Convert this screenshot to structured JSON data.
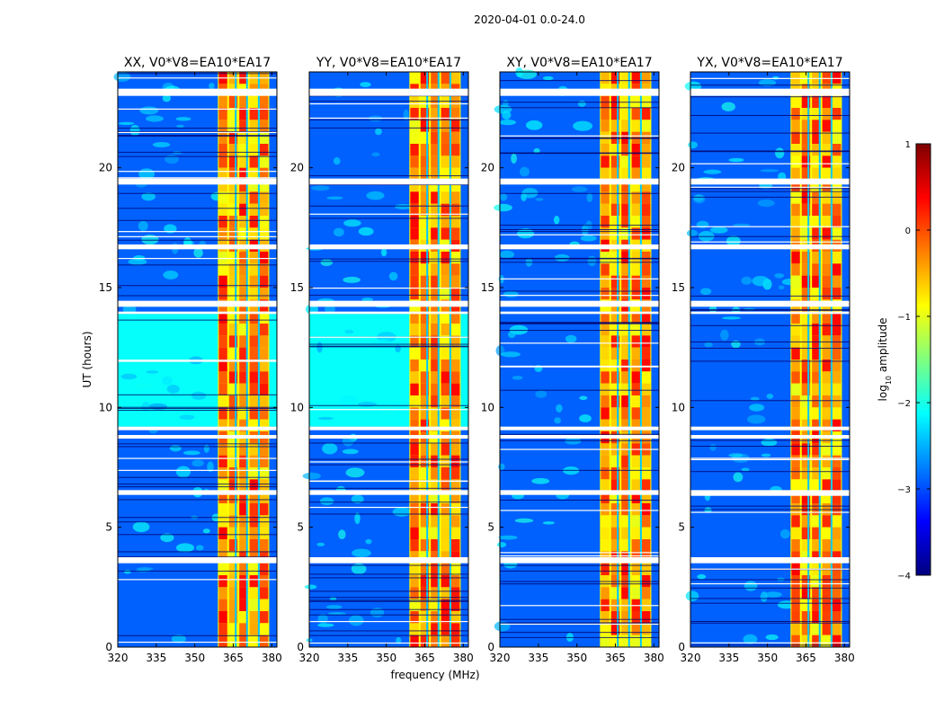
{
  "suptitle": "2020-04-01 0.0-24.0",
  "colorscale": [
    "#00007f",
    "#0000ff",
    "#007fff",
    "#00ffff",
    "#7fff7f",
    "#ffff00",
    "#ff7f00",
    "#ff0000",
    "#7f0000"
  ],
  "chart_data": [
    {
      "type": "heatmap",
      "title": "XX, V0*V8=EA10*EA17",
      "xlabel": "",
      "ylabel": "UT (hours)",
      "xlim": [
        320,
        382
      ],
      "ylim": [
        0,
        24
      ],
      "xticks": [
        320,
        335,
        350,
        365,
        380
      ],
      "yticks": [
        0,
        5,
        10,
        15,
        20
      ],
      "z": "log10 amplitude (approx.)",
      "strong_band_MHz": [
        359,
        379
      ],
      "gap_bands_UT": [
        [
          23.0,
          23.3
        ],
        [
          19.3,
          19.55
        ],
        [
          16.6,
          16.8
        ],
        [
          14.2,
          14.45
        ],
        [
          13.9,
          14.0
        ],
        [
          9.05,
          9.2
        ],
        [
          8.7,
          8.85
        ],
        [
          6.35,
          6.55
        ],
        [
          3.5,
          3.75
        ]
      ],
      "elevated_UT": [
        [
          9.2,
          13.9
        ]
      ]
    },
    {
      "type": "heatmap",
      "title": "YY, V0*V8=EA10*EA17",
      "xlabel": "frequency (MHz)",
      "ylabel": "",
      "xlim": [
        320,
        382
      ],
      "ylim": [
        0,
        24
      ],
      "xticks": [
        320,
        335,
        350,
        365,
        380
      ],
      "yticks": [
        0,
        5,
        10,
        15,
        20
      ],
      "z": "log10 amplitude (approx.)",
      "strong_band_MHz": [
        359,
        379
      ],
      "gap_bands_UT": [
        [
          23.0,
          23.3
        ],
        [
          19.3,
          19.55
        ],
        [
          16.6,
          16.8
        ],
        [
          14.2,
          14.45
        ],
        [
          13.9,
          14.0
        ],
        [
          9.05,
          9.2
        ],
        [
          8.7,
          8.85
        ],
        [
          6.35,
          6.55
        ],
        [
          3.5,
          3.75
        ]
      ],
      "elevated_UT": [
        [
          9.2,
          13.9
        ]
      ]
    },
    {
      "type": "heatmap",
      "title": "XY, V0*V8=EA10*EA17",
      "xlabel": "",
      "ylabel": "",
      "xlim": [
        320,
        382
      ],
      "ylim": [
        0,
        24
      ],
      "xticks": [
        320,
        335,
        350,
        365,
        380
      ],
      "yticks": [
        0,
        5,
        10,
        15,
        20
      ],
      "z": "log10 amplitude (approx.)",
      "strong_band_MHz": [
        359,
        379
      ],
      "gap_bands_UT": [
        [
          23.0,
          23.3
        ],
        [
          19.3,
          19.55
        ],
        [
          16.6,
          16.8
        ],
        [
          14.2,
          14.45
        ],
        [
          13.9,
          14.0
        ],
        [
          9.05,
          9.2
        ],
        [
          8.7,
          8.85
        ],
        [
          6.35,
          6.55
        ],
        [
          3.5,
          3.75
        ]
      ],
      "elevated_UT": []
    },
    {
      "type": "heatmap",
      "title": "YX, V0*V8=EA10*EA17",
      "xlabel": "",
      "ylabel": "",
      "xlim": [
        320,
        382
      ],
      "ylim": [
        0,
        24
      ],
      "xticks": [
        320,
        335,
        350,
        365,
        380
      ],
      "yticks": [
        0,
        5,
        10,
        15,
        20
      ],
      "z": "log10 amplitude (approx.)",
      "strong_band_MHz": [
        359,
        379
      ],
      "gap_bands_UT": [
        [
          23.0,
          23.3
        ],
        [
          19.3,
          19.55
        ],
        [
          16.6,
          16.8
        ],
        [
          14.2,
          14.45
        ],
        [
          13.9,
          14.0
        ],
        [
          9.05,
          9.2
        ],
        [
          8.7,
          8.85
        ],
        [
          6.35,
          6.55
        ],
        [
          3.5,
          3.75
        ]
      ],
      "elevated_UT": []
    },
    {
      "type": "colorbar",
      "label": "log",
      "label_sub": "10",
      "label_rest": " amplitude",
      "range": [
        -4,
        1
      ],
      "ticks": [
        1,
        0,
        -1,
        -2,
        -3,
        -4
      ],
      "tick_labels": [
        "1",
        "0",
        "−1",
        "−2",
        "−3",
        "−4"
      ]
    }
  ]
}
